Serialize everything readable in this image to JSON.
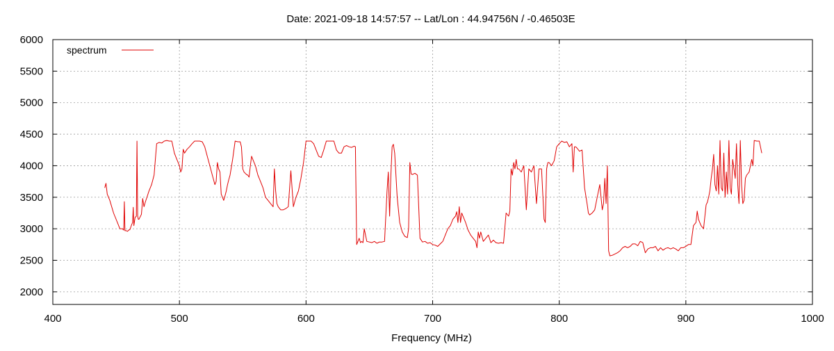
{
  "chart_data": {
    "type": "line",
    "title": "Date: 2021-09-18 14:57:57  --  Lat/Lon : 44.94756N / -0.46503E",
    "xlabel": "Frequency (MHz)",
    "ylabel": "",
    "xlim": [
      400,
      1000
    ],
    "ylim": [
      1800,
      6000
    ],
    "xticks": [
      400,
      500,
      600,
      700,
      800,
      900,
      1000
    ],
    "yticks": [
      2000,
      2500,
      3000,
      3500,
      4000,
      4500,
      5000,
      5500,
      6000
    ],
    "grid": true,
    "legend_position": "top-left",
    "colors": {
      "series": "#e00000",
      "grid": "#999999",
      "axis": "#000000"
    },
    "series": [
      {
        "name": "spectrum",
        "x": [
          441,
          442,
          443,
          445,
          448,
          451,
          453,
          455,
          456,
          456.5,
          457,
          458,
          459,
          460,
          461,
          462,
          463,
          463.5,
          464,
          465,
          466,
          466.5,
          467,
          467.5,
          468,
          470,
          471,
          472,
          473,
          474,
          476,
          478,
          480,
          482,
          484,
          486,
          488,
          490,
          492,
          494,
          496,
          498,
          500,
          501,
          502,
          503,
          504,
          506,
          508,
          510,
          512,
          514,
          516,
          518,
          520,
          522,
          524,
          526,
          528,
          529,
          530,
          531,
          532,
          533,
          534,
          535,
          536,
          537,
          538,
          539,
          540,
          542,
          544,
          546,
          548,
          549,
          550,
          551,
          552,
          553,
          554,
          555,
          556,
          557,
          558,
          560,
          562,
          564,
          566,
          568,
          570,
          572,
          574,
          575,
          576,
          577,
          578,
          580,
          582,
          584,
          586,
          588,
          590,
          592,
          594,
          596,
          598,
          600,
          602,
          604,
          606,
          608,
          610,
          612,
          614,
          616,
          618,
          620,
          622,
          624,
          626,
          628,
          630,
          632,
          634,
          636,
          638,
          639,
          640,
          641,
          642,
          643,
          644,
          645,
          646,
          648,
          650,
          652,
          654,
          656,
          658,
          660,
          662,
          664,
          665,
          666,
          667,
          668,
          669,
          670,
          672,
          674,
          676,
          678,
          680,
          681,
          682,
          683,
          684,
          685,
          686,
          688,
          690,
          692,
          694,
          696,
          698,
          700,
          702,
          704,
          706,
          708,
          710,
          712,
          714,
          716,
          718,
          719,
          720,
          721,
          722,
          723,
          724,
          726,
          728,
          730,
          732,
          734,
          735,
          736,
          737,
          738,
          740,
          742,
          744,
          746,
          748,
          750,
          752,
          754,
          756,
          758,
          760,
          761,
          762,
          763,
          764,
          765,
          766,
          767,
          768,
          770,
          772,
          774,
          776,
          778,
          780,
          782,
          784,
          786,
          788,
          789,
          790,
          791,
          792,
          794,
          796,
          798,
          800,
          802,
          804,
          806,
          808,
          810,
          811,
          812,
          813,
          814,
          816,
          818,
          820,
          822,
          823,
          824,
          826,
          828,
          830,
          832,
          834,
          835,
          836,
          837,
          838,
          839,
          840,
          842,
          844,
          846,
          848,
          850,
          852,
          854,
          856,
          858,
          860,
          862,
          864,
          866,
          868,
          870,
          872,
          874,
          876,
          878,
          880,
          882,
          884,
          886,
          888,
          890,
          892,
          894,
          896,
          898,
          900,
          902,
          904,
          906,
          908,
          909,
          910,
          912,
          914,
          916,
          917,
          918,
          919,
          920,
          921,
          922,
          923,
          924,
          925,
          926,
          927,
          928,
          929,
          930,
          931,
          932,
          933,
          934,
          935,
          936,
          937,
          938,
          939,
          940,
          941,
          942,
          943,
          944,
          945,
          946,
          947,
          948,
          950,
          952,
          953,
          954,
          956,
          958,
          960
        ],
        "y": [
          3650,
          3720,
          3550,
          3450,
          3250,
          3100,
          3000,
          3000,
          2980,
          3430,
          2970,
          2970,
          2960,
          2980,
          2990,
          3050,
          3100,
          3340,
          3050,
          3180,
          3200,
          4390,
          3200,
          3150,
          3150,
          3230,
          3480,
          3350,
          3420,
          3480,
          3600,
          3700,
          3850,
          4350,
          4370,
          4360,
          4390,
          4400,
          4390,
          4390,
          4200,
          4100,
          4000,
          3900,
          3950,
          4260,
          4200,
          4260,
          4300,
          4350,
          4390,
          4390,
          4390,
          4380,
          4300,
          4150,
          4000,
          3850,
          3700,
          3750,
          4050,
          3950,
          3900,
          3550,
          3500,
          3450,
          3520,
          3600,
          3700,
          3780,
          3850,
          4100,
          4390,
          4380,
          4380,
          4300,
          3950,
          3900,
          3880,
          3860,
          3850,
          3820,
          4000,
          4150,
          4100,
          4000,
          3850,
          3750,
          3650,
          3500,
          3450,
          3400,
          3350,
          3950,
          3600,
          3400,
          3350,
          3300,
          3300,
          3320,
          3350,
          3920,
          3350,
          3500,
          3600,
          3800,
          4050,
          4390,
          4390,
          4390,
          4350,
          4250,
          4150,
          4130,
          4250,
          4390,
          4390,
          4390,
          4390,
          4250,
          4200,
          4200,
          4300,
          4320,
          4300,
          4290,
          4310,
          4300,
          2750,
          2800,
          2850,
          2780,
          2800,
          2780,
          3000,
          2800,
          2790,
          2780,
          2800,
          2770,
          2790,
          2790,
          2800,
          3600,
          3900,
          3200,
          3850,
          4300,
          4340,
          4200,
          3500,
          3100,
          2950,
          2880,
          2860,
          3000,
          4050,
          3870,
          3860,
          3870,
          3880,
          3850,
          2850,
          2790,
          2800,
          2770,
          2780,
          2750,
          2740,
          2720,
          2760,
          2800,
          2900,
          3000,
          3050,
          3150,
          3200,
          3270,
          3100,
          3350,
          3100,
          3250,
          3200,
          3100,
          2980,
          2900,
          2850,
          2800,
          2700,
          2950,
          2850,
          2950,
          2800,
          2850,
          2900,
          2780,
          2820,
          2780,
          2770,
          2780,
          2770,
          3250,
          3200,
          3280,
          3950,
          3850,
          4050,
          3950,
          4100,
          3950,
          3950,
          3900,
          4000,
          3300,
          3950,
          3900,
          4000,
          3400,
          3950,
          3950,
          3150,
          3100,
          3950,
          4050,
          4050,
          4000,
          4080,
          4300,
          4350,
          4390,
          4370,
          4380,
          4300,
          4350,
          3900,
          4300,
          4300,
          4280,
          4230,
          4250,
          3650,
          3400,
          3250,
          3220,
          3250,
          3300,
          3500,
          3700,
          3300,
          3400,
          3800,
          3400,
          4000,
          2650,
          2570,
          2580,
          2600,
          2620,
          2650,
          2700,
          2720,
          2700,
          2720,
          2760,
          2760,
          2730,
          2800,
          2780,
          2620,
          2680,
          2700,
          2700,
          2720,
          2650,
          2700,
          2660,
          2690,
          2700,
          2680,
          2700,
          2680,
          2650,
          2700,
          2700,
          2720,
          2750,
          2750,
          3050,
          3100,
          3280,
          3150,
          3050,
          3000,
          3380,
          3420,
          3500,
          3600,
          3800,
          3950,
          4180,
          3700,
          3600,
          4000,
          3550,
          4400,
          3650,
          3600,
          4200,
          3500,
          3900,
          3550,
          4400,
          3650,
          3550,
          4100,
          3950,
          3800,
          4350,
          3700,
          3400,
          4400,
          3700,
          3400,
          3450,
          3800,
          3850,
          3900,
          4100,
          4000,
          4400,
          4390,
          4390,
          4200
        ]
      }
    ]
  }
}
